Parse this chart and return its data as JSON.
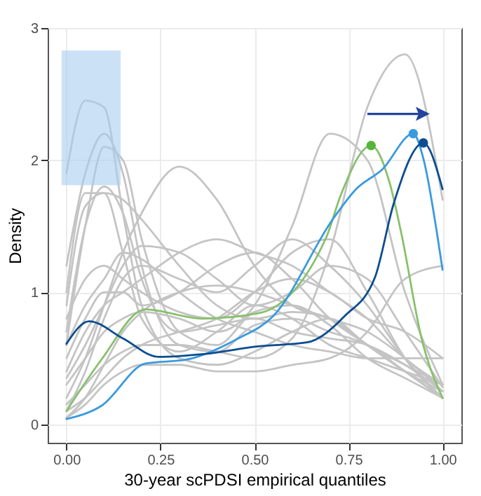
{
  "chart_data": {
    "type": "line",
    "xlabel": "30-year scPDSI empirical quantiles",
    "ylabel": "Density",
    "x": [
      0,
      0.05,
      0.1,
      0.15,
      0.2,
      0.3,
      0.4,
      0.5,
      0.6,
      0.7,
      0.8,
      0.9,
      1
    ],
    "xlim": [
      -0.05,
      1.05
    ],
    "ylim": [
      -0.14,
      3.0
    ],
    "xticks": [
      {
        "value": 0,
        "label": "0.00"
      },
      {
        "value": 0.25,
        "label": "0.25"
      },
      {
        "value": 0.5,
        "label": "0.50"
      },
      {
        "value": 0.75,
        "label": "0.75"
      },
      {
        "value": 1,
        "label": "1.00"
      }
    ],
    "yticks": [
      0,
      1,
      2,
      3
    ],
    "grid": true,
    "series": [
      {
        "color": "#c4c4c4",
        "values": [
          1.9,
          2.45,
          2.4,
          1.6,
          0.9,
          0.5,
          0.45,
          0.55,
          0.7,
          0.8,
          0.6,
          0.45,
          0.3
        ]
      },
      {
        "color": "#c4c4c4",
        "values": [
          1.2,
          1.9,
          2.2,
          1.9,
          1.2,
          0.6,
          0.55,
          0.75,
          0.8,
          0.7,
          0.6,
          0.4,
          0.2
        ]
      },
      {
        "color": "#c4c4c4",
        "values": [
          0.6,
          1.5,
          2.1,
          2.0,
          1.4,
          0.7,
          0.6,
          0.85,
          0.9,
          0.75,
          0.5,
          0.35,
          0.2
        ]
      },
      {
        "color": "#c4c4c4",
        "values": [
          1.0,
          1.75,
          1.75,
          1.3,
          0.8,
          0.55,
          0.7,
          0.9,
          0.8,
          0.6,
          0.5,
          0.4,
          0.3
        ]
      },
      {
        "color": "#c4c4c4",
        "values": [
          0.7,
          1.5,
          1.8,
          1.6,
          1.1,
          0.7,
          0.75,
          0.8,
          0.7,
          0.65,
          0.6,
          0.45,
          0.25
        ]
      },
      {
        "color": "#c4c4c4",
        "values": [
          0.9,
          1.65,
          1.75,
          1.7,
          1.55,
          1.2,
          0.9,
          0.8,
          0.85,
          0.8,
          0.6,
          0.4,
          0.2
        ]
      },
      {
        "color": "#c4c4c4",
        "values": [
          0.2,
          0.5,
          0.9,
          1.3,
          1.6,
          1.95,
          1.7,
          1.2,
          0.9,
          0.8,
          0.6,
          0.4,
          0.2
        ]
      },
      {
        "color": "#c4c4c4",
        "values": [
          0.15,
          0.3,
          0.45,
          0.55,
          0.6,
          0.6,
          0.55,
          0.5,
          0.65,
          1.3,
          2.4,
          2.8,
          1.7
        ]
      },
      {
        "color": "#c4c4c4",
        "values": [
          0.3,
          0.5,
          0.7,
          0.8,
          0.85,
          0.8,
          0.7,
          0.9,
          1.5,
          2.2,
          2.0,
          1.0,
          0.3
        ]
      },
      {
        "color": "#c4c4c4",
        "values": [
          0.1,
          0.4,
          0.8,
          1.1,
          1.2,
          1.1,
          1.0,
          1.2,
          1.4,
          1.2,
          0.9,
          0.5,
          0.2
        ]
      },
      {
        "color": "#c4c4c4",
        "values": [
          0.5,
          0.8,
          1.0,
          1.0,
          0.9,
          1.0,
          1.2,
          1.3,
          1.1,
          0.8,
          0.6,
          0.4,
          0.25
        ]
      },
      {
        "color": "#c4c4c4",
        "values": [
          0.35,
          0.6,
          0.9,
          1.2,
          1.35,
          1.3,
          1.1,
          0.9,
          1.0,
          1.2,
          1.1,
          0.7,
          0.28
        ]
      },
      {
        "color": "#c4c4c4",
        "values": [
          0.8,
          1.1,
          1.2,
          1.1,
          1.0,
          0.85,
          0.8,
          1.0,
          1.3,
          1.4,
          1.0,
          0.5,
          0.2
        ]
      },
      {
        "color": "#c4c4c4",
        "values": [
          0.05,
          0.15,
          0.3,
          0.4,
          0.45,
          0.45,
          0.4,
          0.4,
          0.45,
          0.5,
          0.7,
          1.1,
          1.2
        ]
      },
      {
        "color": "#c4c4c4",
        "values": [
          0.1,
          0.2,
          0.35,
          0.5,
          0.6,
          0.7,
          0.8,
          1.0,
          1.1,
          1.0,
          0.8,
          0.7,
          0.5
        ]
      },
      {
        "color": "#c4c4c4",
        "values": [
          0.4,
          0.7,
          0.9,
          1.0,
          1.1,
          1.3,
          1.4,
          1.3,
          1.2,
          1.0,
          0.8,
          0.5,
          0.3
        ]
      },
      {
        "color": "#c4c4c4",
        "values": [
          0.05,
          0.2,
          0.45,
          0.7,
          0.85,
          1.0,
          1.05,
          1.0,
          0.9,
          0.8,
          0.7,
          0.5,
          0.25
        ]
      },
      {
        "color": "#c4c4c4",
        "values": [
          0.6,
          0.9,
          1.1,
          1.3,
          1.25,
          1.0,
          0.8,
          0.7,
          0.6,
          0.55,
          0.5,
          0.5,
          0.5
        ]
      },
      {
        "color": "#88c06c",
        "x": [
          0,
          0.093,
          0.21,
          0.36,
          0.51,
          0.69,
          0.73,
          0.81,
          0.86,
          0.89,
          0.945,
          1.0
        ],
        "values": [
          0.1,
          0.49,
          0.87,
          0.8,
          0.84,
          1.41,
          1.74,
          2.11,
          1.82,
          1.45,
          0.64,
          0.2
        ]
      },
      {
        "color": "#3a9ade",
        "x": [
          0,
          0.093,
          0.21,
          0.32,
          0.45,
          0.55,
          0.71,
          0.77,
          0.84,
          0.922,
          0.95,
          0.985,
          1.0
        ],
        "values": [
          0.04,
          0.14,
          0.46,
          0.49,
          0.64,
          0.82,
          1.56,
          1.78,
          1.93,
          2.2,
          2.0,
          1.45,
          1.17
        ]
      },
      {
        "color": "#0b4d8f",
        "x": [
          0,
          0.06,
          0.15,
          0.245,
          0.36,
          0.51,
          0.64,
          0.74,
          0.82,
          0.87,
          0.949,
          1.0
        ],
        "values": [
          0.61,
          0.78,
          0.65,
          0.51,
          0.53,
          0.59,
          0.62,
          0.82,
          1.11,
          1.67,
          2.13,
          1.78
        ]
      },
      {
        "type": "scatter",
        "color": "#55b43c",
        "x": [
          0.81
        ],
        "values": [
          2.11
        ]
      },
      {
        "type": "scatter",
        "color": "#3a9ade",
        "x": [
          0.922
        ],
        "values": [
          2.2
        ]
      },
      {
        "type": "scatter",
        "color": "#0b4d8f",
        "x": [
          0.949
        ],
        "values": [
          2.13
        ]
      }
    ]
  }
}
